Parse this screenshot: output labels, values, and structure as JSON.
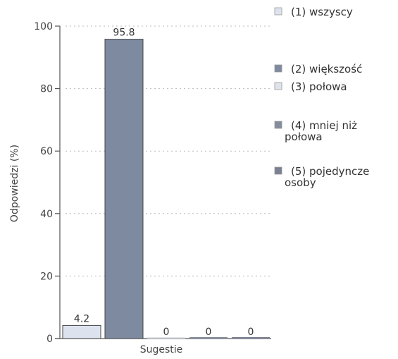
{
  "chart_data": {
    "type": "bar",
    "xlabel": "Sugestie",
    "ylabel": "Odpowiedzi (%)",
    "ylim": [
      0,
      100
    ],
    "yticks": [
      0,
      20,
      40,
      60,
      80,
      100
    ],
    "ytick_labels": [
      "0",
      "20",
      "40",
      "60",
      "80",
      "100"
    ],
    "grid": "horizontal dotted",
    "legend_position": "right",
    "series": [
      {
        "name": "(1) wszyscy",
        "value": 4.2,
        "label": "4.2",
        "color": "#dde3ee"
      },
      {
        "name": "(2) większość",
        "value": 95.8,
        "label": "95.8",
        "color": "#7e8aa0"
      },
      {
        "name": "(3) połowa",
        "value": 0,
        "label": "0",
        "color": "#dfe3ec"
      },
      {
        "name": "(4) mniej niż połowa",
        "value": 0,
        "label": "0",
        "color": "#858c9c"
      },
      {
        "name": "(5) pojedyncze osoby",
        "value": 0,
        "label": "0",
        "color": "#7a8194"
      }
    ]
  },
  "legend": {
    "items": [
      {
        "lines": [
          "(1) wszyscy"
        ]
      },
      {
        "lines": [
          "(2) większość"
        ]
      },
      {
        "lines": [
          "(3) połowa"
        ]
      },
      {
        "lines": [
          "(4) mniej niż",
          "połowa"
        ]
      },
      {
        "lines": [
          "(5) pojedyncze",
          "osoby"
        ]
      }
    ]
  }
}
